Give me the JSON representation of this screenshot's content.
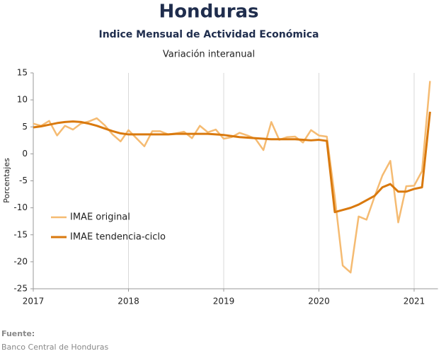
{
  "chart_data": {
    "type": "line",
    "title": "Honduras",
    "subtitle": "Indice Mensual de  Actividad Económica",
    "subtitle2": "Variación interanual",
    "y_label": "Porcentajes",
    "x": [
      2017,
      2017.083,
      2017.167,
      2017.25,
      2017.333,
      2017.417,
      2017.5,
      2017.583,
      2017.667,
      2017.75,
      2017.833,
      2017.917,
      2018,
      2018.083,
      2018.167,
      2018.25,
      2018.333,
      2018.417,
      2018.5,
      2018.583,
      2018.667,
      2018.75,
      2018.833,
      2018.917,
      2019,
      2019.083,
      2019.167,
      2019.25,
      2019.333,
      2019.417,
      2019.5,
      2019.583,
      2019.667,
      2019.75,
      2019.833,
      2019.917,
      2020,
      2020.083,
      2020.167,
      2020.25,
      2020.333,
      2020.417,
      2020.5,
      2020.583,
      2020.667,
      2020.75,
      2020.833,
      2020.917,
      2021,
      2021.083,
      2021.167
    ],
    "series": [
      {
        "name": "IMAE original",
        "color": "#f5bb72",
        "width": 2.5,
        "values": [
          5.6,
          5.2,
          6.1,
          3.4,
          5.2,
          4.5,
          5.6,
          6.0,
          6.6,
          5.3,
          3.6,
          2.3,
          4.4,
          2.9,
          1.4,
          4.2,
          4.2,
          3.6,
          3.8,
          4.1,
          2.9,
          5.2,
          4.0,
          4.5,
          2.8,
          3.1,
          3.9,
          3.4,
          2.8,
          0.7,
          5.9,
          2.6,
          3.1,
          3.2,
          2.1,
          4.4,
          3.4,
          3.2,
          -8.0,
          -20.7,
          -22.0,
          -11.6,
          -12.2,
          -8.0,
          -4.0,
          -1.3,
          -12.7,
          -6.0,
          -5.9,
          -3.2,
          13.5
        ]
      },
      {
        "name": "IMAE tendencia-ciclo",
        "color": "#d9790e",
        "width": 3,
        "values": [
          4.9,
          5.1,
          5.4,
          5.7,
          5.9,
          6.0,
          5.9,
          5.6,
          5.2,
          4.7,
          4.2,
          3.8,
          3.6,
          3.6,
          3.6,
          3.6,
          3.6,
          3.6,
          3.7,
          3.7,
          3.7,
          3.7,
          3.7,
          3.6,
          3.5,
          3.3,
          3.1,
          3.0,
          2.9,
          2.8,
          2.7,
          2.7,
          2.7,
          2.7,
          2.6,
          2.5,
          2.6,
          2.4,
          -10.8,
          -10.4,
          -10.0,
          -9.4,
          -8.6,
          -7.8,
          -6.2,
          -5.6,
          -7.0,
          -7.0,
          -6.5,
          -6.2,
          7.8
        ]
      }
    ],
    "xlim": [
      2017,
      2021.25
    ],
    "xticks": [
      2017,
      2018,
      2019,
      2020,
      2021
    ],
    "ylim": [
      -25,
      15
    ],
    "yticks": [
      15,
      10,
      5,
      0,
      -5,
      -10,
      -15,
      -20,
      -25
    ],
    "xgrid": true,
    "legend": "lower left"
  },
  "footer": {
    "label": "Fuente:",
    "source": "Banco Central de Honduras"
  }
}
